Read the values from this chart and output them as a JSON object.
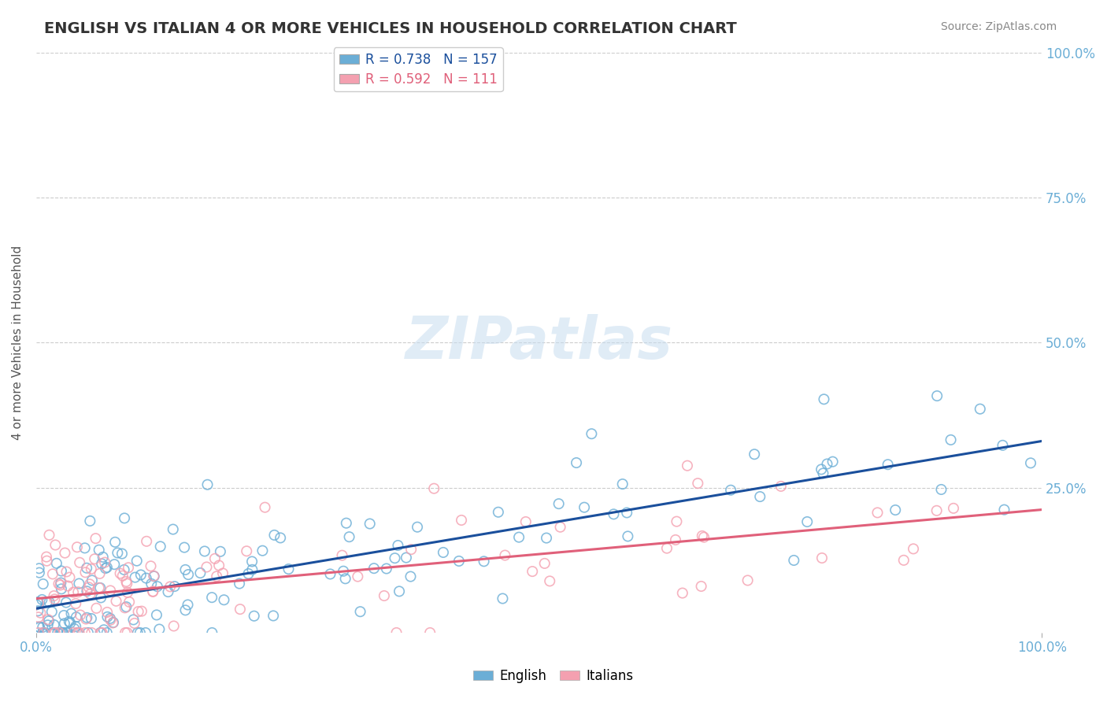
{
  "title": "ENGLISH VS ITALIAN 4 OR MORE VEHICLES IN HOUSEHOLD CORRELATION CHART",
  "source": "Source: ZipAtlas.com",
  "ylabel": "4 or more Vehicles in Household",
  "xlim": [
    0.0,
    1.0
  ],
  "ylim": [
    0.0,
    1.0
  ],
  "english_R": 0.738,
  "english_N": 157,
  "italian_R": 0.592,
  "italian_N": 111,
  "english_color": "#6baed6",
  "italian_color": "#f4a0b0",
  "english_line_color": "#1a4f9c",
  "italian_line_color": "#e0607a",
  "watermark": "ZIPatlas",
  "background_color": "#ffffff",
  "grid_color": "#cccccc",
  "tick_color": "#6baed6"
}
